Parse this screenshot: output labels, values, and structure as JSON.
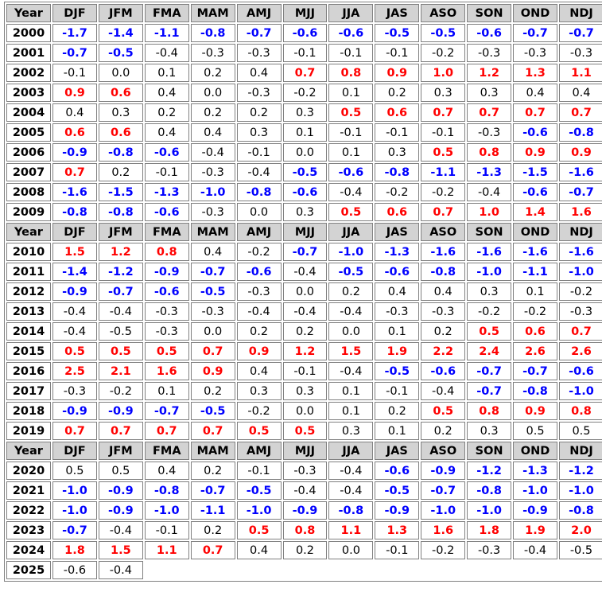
{
  "table": {
    "year_label": "Year",
    "seasons": [
      "DJF",
      "JFM",
      "FMA",
      "MAM",
      "AMJ",
      "MJJ",
      "JJA",
      "JAS",
      "ASO",
      "SON",
      "OND",
      "NDJ"
    ],
    "colors": {
      "warm": "#ff0000",
      "cool": "#0000ff",
      "neutral": "#000000",
      "header_bg": "#d3d3d3"
    },
    "rows": [
      {
        "year": "2000",
        "values": [
          "-1.7",
          "-1.4",
          "-1.1",
          "-0.8",
          "-0.7",
          "-0.6",
          "-0.6",
          "-0.5",
          "-0.5",
          "-0.6",
          "-0.7",
          "-0.7"
        ]
      },
      {
        "year": "2001",
        "values": [
          "-0.7",
          "-0.5",
          "-0.4",
          "-0.3",
          "-0.3",
          "-0.1",
          "-0.1",
          "-0.1",
          "-0.2",
          "-0.3",
          "-0.3",
          "-0.3"
        ]
      },
      {
        "year": "2002",
        "values": [
          "-0.1",
          "0.0",
          "0.1",
          "0.2",
          "0.4",
          "0.7",
          "0.8",
          "0.9",
          "1.0",
          "1.2",
          "1.3",
          "1.1"
        ]
      },
      {
        "year": "2003",
        "values": [
          "0.9",
          "0.6",
          "0.4",
          "0.0",
          "-0.3",
          "-0.2",
          "0.1",
          "0.2",
          "0.3",
          "0.3",
          "0.4",
          "0.4"
        ]
      },
      {
        "year": "2004",
        "values": [
          "0.4",
          "0.3",
          "0.2",
          "0.2",
          "0.2",
          "0.3",
          "0.5",
          "0.6",
          "0.7",
          "0.7",
          "0.7",
          "0.7"
        ]
      },
      {
        "year": "2005",
        "values": [
          "0.6",
          "0.6",
          "0.4",
          "0.4",
          "0.3",
          "0.1",
          "-0.1",
          "-0.1",
          "-0.1",
          "-0.3",
          "-0.6",
          "-0.8"
        ]
      },
      {
        "year": "2006",
        "values": [
          "-0.9",
          "-0.8",
          "-0.6",
          "-0.4",
          "-0.1",
          "0.0",
          "0.1",
          "0.3",
          "0.5",
          "0.8",
          "0.9",
          "0.9"
        ]
      },
      {
        "year": "2007",
        "values": [
          "0.7",
          "0.2",
          "-0.1",
          "-0.3",
          "-0.4",
          "-0.5",
          "-0.6",
          "-0.8",
          "-1.1",
          "-1.3",
          "-1.5",
          "-1.6"
        ]
      },
      {
        "year": "2008",
        "values": [
          "-1.6",
          "-1.5",
          "-1.3",
          "-1.0",
          "-0.8",
          "-0.6",
          "-0.4",
          "-0.2",
          "-0.2",
          "-0.4",
          "-0.6",
          "-0.7"
        ]
      },
      {
        "year": "2009",
        "values": [
          "-0.8",
          "-0.8",
          "-0.6",
          "-0.3",
          "0.0",
          "0.3",
          "0.5",
          "0.6",
          "0.7",
          "1.0",
          "1.4",
          "1.6"
        ]
      },
      {
        "year": "2010",
        "values": [
          "1.5",
          "1.2",
          "0.8",
          "0.4",
          "-0.2",
          "-0.7",
          "-1.0",
          "-1.3",
          "-1.6",
          "-1.6",
          "-1.6",
          "-1.6"
        ]
      },
      {
        "year": "2011",
        "values": [
          "-1.4",
          "-1.2",
          "-0.9",
          "-0.7",
          "-0.6",
          "-0.4",
          "-0.5",
          "-0.6",
          "-0.8",
          "-1.0",
          "-1.1",
          "-1.0"
        ]
      },
      {
        "year": "2012",
        "values": [
          "-0.9",
          "-0.7",
          "-0.6",
          "-0.5",
          "-0.3",
          "0.0",
          "0.2",
          "0.4",
          "0.4",
          "0.3",
          "0.1",
          "-0.2"
        ]
      },
      {
        "year": "2013",
        "values": [
          "-0.4",
          "-0.4",
          "-0.3",
          "-0.3",
          "-0.4",
          "-0.4",
          "-0.4",
          "-0.3",
          "-0.3",
          "-0.2",
          "-0.2",
          "-0.3"
        ]
      },
      {
        "year": "2014",
        "values": [
          "-0.4",
          "-0.5",
          "-0.3",
          "0.0",
          "0.2",
          "0.2",
          "0.0",
          "0.1",
          "0.2",
          "0.5",
          "0.6",
          "0.7"
        ]
      },
      {
        "year": "2015",
        "values": [
          "0.5",
          "0.5",
          "0.5",
          "0.7",
          "0.9",
          "1.2",
          "1.5",
          "1.9",
          "2.2",
          "2.4",
          "2.6",
          "2.6"
        ]
      },
      {
        "year": "2016",
        "values": [
          "2.5",
          "2.1",
          "1.6",
          "0.9",
          "0.4",
          "-0.1",
          "-0.4",
          "-0.5",
          "-0.6",
          "-0.7",
          "-0.7",
          "-0.6"
        ]
      },
      {
        "year": "2017",
        "values": [
          "-0.3",
          "-0.2",
          "0.1",
          "0.2",
          "0.3",
          "0.3",
          "0.1",
          "-0.1",
          "-0.4",
          "-0.7",
          "-0.8",
          "-1.0"
        ]
      },
      {
        "year": "2018",
        "values": [
          "-0.9",
          "-0.9",
          "-0.7",
          "-0.5",
          "-0.2",
          "0.0",
          "0.1",
          "0.2",
          "0.5",
          "0.8",
          "0.9",
          "0.8"
        ]
      },
      {
        "year": "2019",
        "values": [
          "0.7",
          "0.7",
          "0.7",
          "0.7",
          "0.5",
          "0.5",
          "0.3",
          "0.1",
          "0.2",
          "0.3",
          "0.5",
          "0.5"
        ]
      },
      {
        "year": "2020",
        "values": [
          "0.5",
          "0.5",
          "0.4",
          "0.2",
          "-0.1",
          "-0.3",
          "-0.4",
          "-0.6",
          "-0.9",
          "-1.2",
          "-1.3",
          "-1.2"
        ]
      },
      {
        "year": "2021",
        "values": [
          "-1.0",
          "-0.9",
          "-0.8",
          "-0.7",
          "-0.5",
          "-0.4",
          "-0.4",
          "-0.5",
          "-0.7",
          "-0.8",
          "-1.0",
          "-1.0"
        ]
      },
      {
        "year": "2022",
        "values": [
          "-1.0",
          "-0.9",
          "-1.0",
          "-1.1",
          "-1.0",
          "-0.9",
          "-0.8",
          "-0.9",
          "-1.0",
          "-1.0",
          "-0.9",
          "-0.8"
        ]
      },
      {
        "year": "2023",
        "values": [
          "-0.7",
          "-0.4",
          "-0.1",
          "0.2",
          "0.5",
          "0.8",
          "1.1",
          "1.3",
          "1.6",
          "1.8",
          "1.9",
          "2.0"
        ]
      },
      {
        "year": "2024",
        "values": [
          "1.8",
          "1.5",
          "1.1",
          "0.7",
          "0.4",
          "0.2",
          "0.0",
          "-0.1",
          "-0.2",
          "-0.3",
          "-0.4",
          "-0.5"
        ]
      },
      {
        "year": "2025",
        "values": [
          "-0.6",
          "-0.4"
        ]
      }
    ],
    "highlight": [
      [
        "cool",
        "cool",
        "cool",
        "cool",
        "cool",
        "cool",
        "cool",
        "cool",
        "cool",
        "cool",
        "cool",
        "cool"
      ],
      [
        "cool",
        "cool",
        "",
        "",
        "",
        "",
        "",
        "",
        "",
        "",
        "",
        ""
      ],
      [
        "",
        "",
        "",
        "",
        "",
        "warm",
        "warm",
        "warm",
        "warm",
        "warm",
        "warm",
        "warm"
      ],
      [
        "warm",
        "warm",
        "",
        "",
        "",
        "",
        "",
        "",
        "",
        "",
        "",
        ""
      ],
      [
        "",
        "",
        "",
        "",
        "",
        "",
        "warm",
        "warm",
        "warm",
        "warm",
        "warm",
        "warm"
      ],
      [
        "warm",
        "warm",
        "",
        "",
        "",
        "",
        "",
        "",
        "",
        "",
        "cool",
        "cool"
      ],
      [
        "cool",
        "cool",
        "cool",
        "",
        "",
        "",
        "",
        "",
        "warm",
        "warm",
        "warm",
        "warm"
      ],
      [
        "warm",
        "",
        "",
        "",
        "",
        "cool",
        "cool",
        "cool",
        "cool",
        "cool",
        "cool",
        "cool"
      ],
      [
        "cool",
        "cool",
        "cool",
        "cool",
        "cool",
        "cool",
        "",
        "",
        "",
        "",
        "cool",
        "cool"
      ],
      [
        "cool",
        "cool",
        "cool",
        "",
        "",
        "",
        "warm",
        "warm",
        "warm",
        "warm",
        "warm",
        "warm"
      ],
      [
        "warm",
        "warm",
        "warm",
        "",
        "",
        "cool",
        "cool",
        "cool",
        "cool",
        "cool",
        "cool",
        "cool"
      ],
      [
        "cool",
        "cool",
        "cool",
        "cool",
        "cool",
        "",
        "cool",
        "cool",
        "cool",
        "cool",
        "cool",
        "cool"
      ],
      [
        "cool",
        "cool",
        "cool",
        "cool",
        "",
        "",
        "",
        "",
        "",
        "",
        "",
        ""
      ],
      [
        "",
        "",
        "",
        "",
        "",
        "",
        "",
        "",
        "",
        "",
        "",
        ""
      ],
      [
        "",
        "",
        "",
        "",
        "",
        "",
        "",
        "",
        "",
        "warm",
        "warm",
        "warm"
      ],
      [
        "warm",
        "warm",
        "warm",
        "warm",
        "warm",
        "warm",
        "warm",
        "warm",
        "warm",
        "warm",
        "warm",
        "warm"
      ],
      [
        "warm",
        "warm",
        "warm",
        "warm",
        "",
        "",
        "",
        "cool",
        "cool",
        "cool",
        "cool",
        "cool"
      ],
      [
        "",
        "",
        "",
        "",
        "",
        "",
        "",
        "",
        "",
        "cool",
        "cool",
        "cool"
      ],
      [
        "cool",
        "cool",
        "cool",
        "cool",
        "",
        "",
        "",
        "",
        "warm",
        "warm",
        "warm",
        "warm"
      ],
      [
        "warm",
        "warm",
        "warm",
        "warm",
        "warm",
        "warm",
        "",
        "",
        "",
        "",
        "",
        ""
      ],
      [
        "",
        "",
        "",
        "",
        "",
        "",
        "",
        "cool",
        "cool",
        "cool",
        "cool",
        "cool"
      ],
      [
        "cool",
        "cool",
        "cool",
        "cool",
        "cool",
        "",
        "",
        "cool",
        "cool",
        "cool",
        "cool",
        "cool"
      ],
      [
        "cool",
        "cool",
        "cool",
        "cool",
        "cool",
        "cool",
        "cool",
        "cool",
        "cool",
        "cool",
        "cool",
        "cool"
      ],
      [
        "cool",
        "",
        "",
        "",
        "warm",
        "warm",
        "warm",
        "warm",
        "warm",
        "warm",
        "warm",
        "warm"
      ],
      [
        "warm",
        "warm",
        "warm",
        "warm",
        "",
        "",
        "",
        "",
        "",
        "",
        "",
        ""
      ],
      [
        "",
        ""
      ]
    ]
  }
}
